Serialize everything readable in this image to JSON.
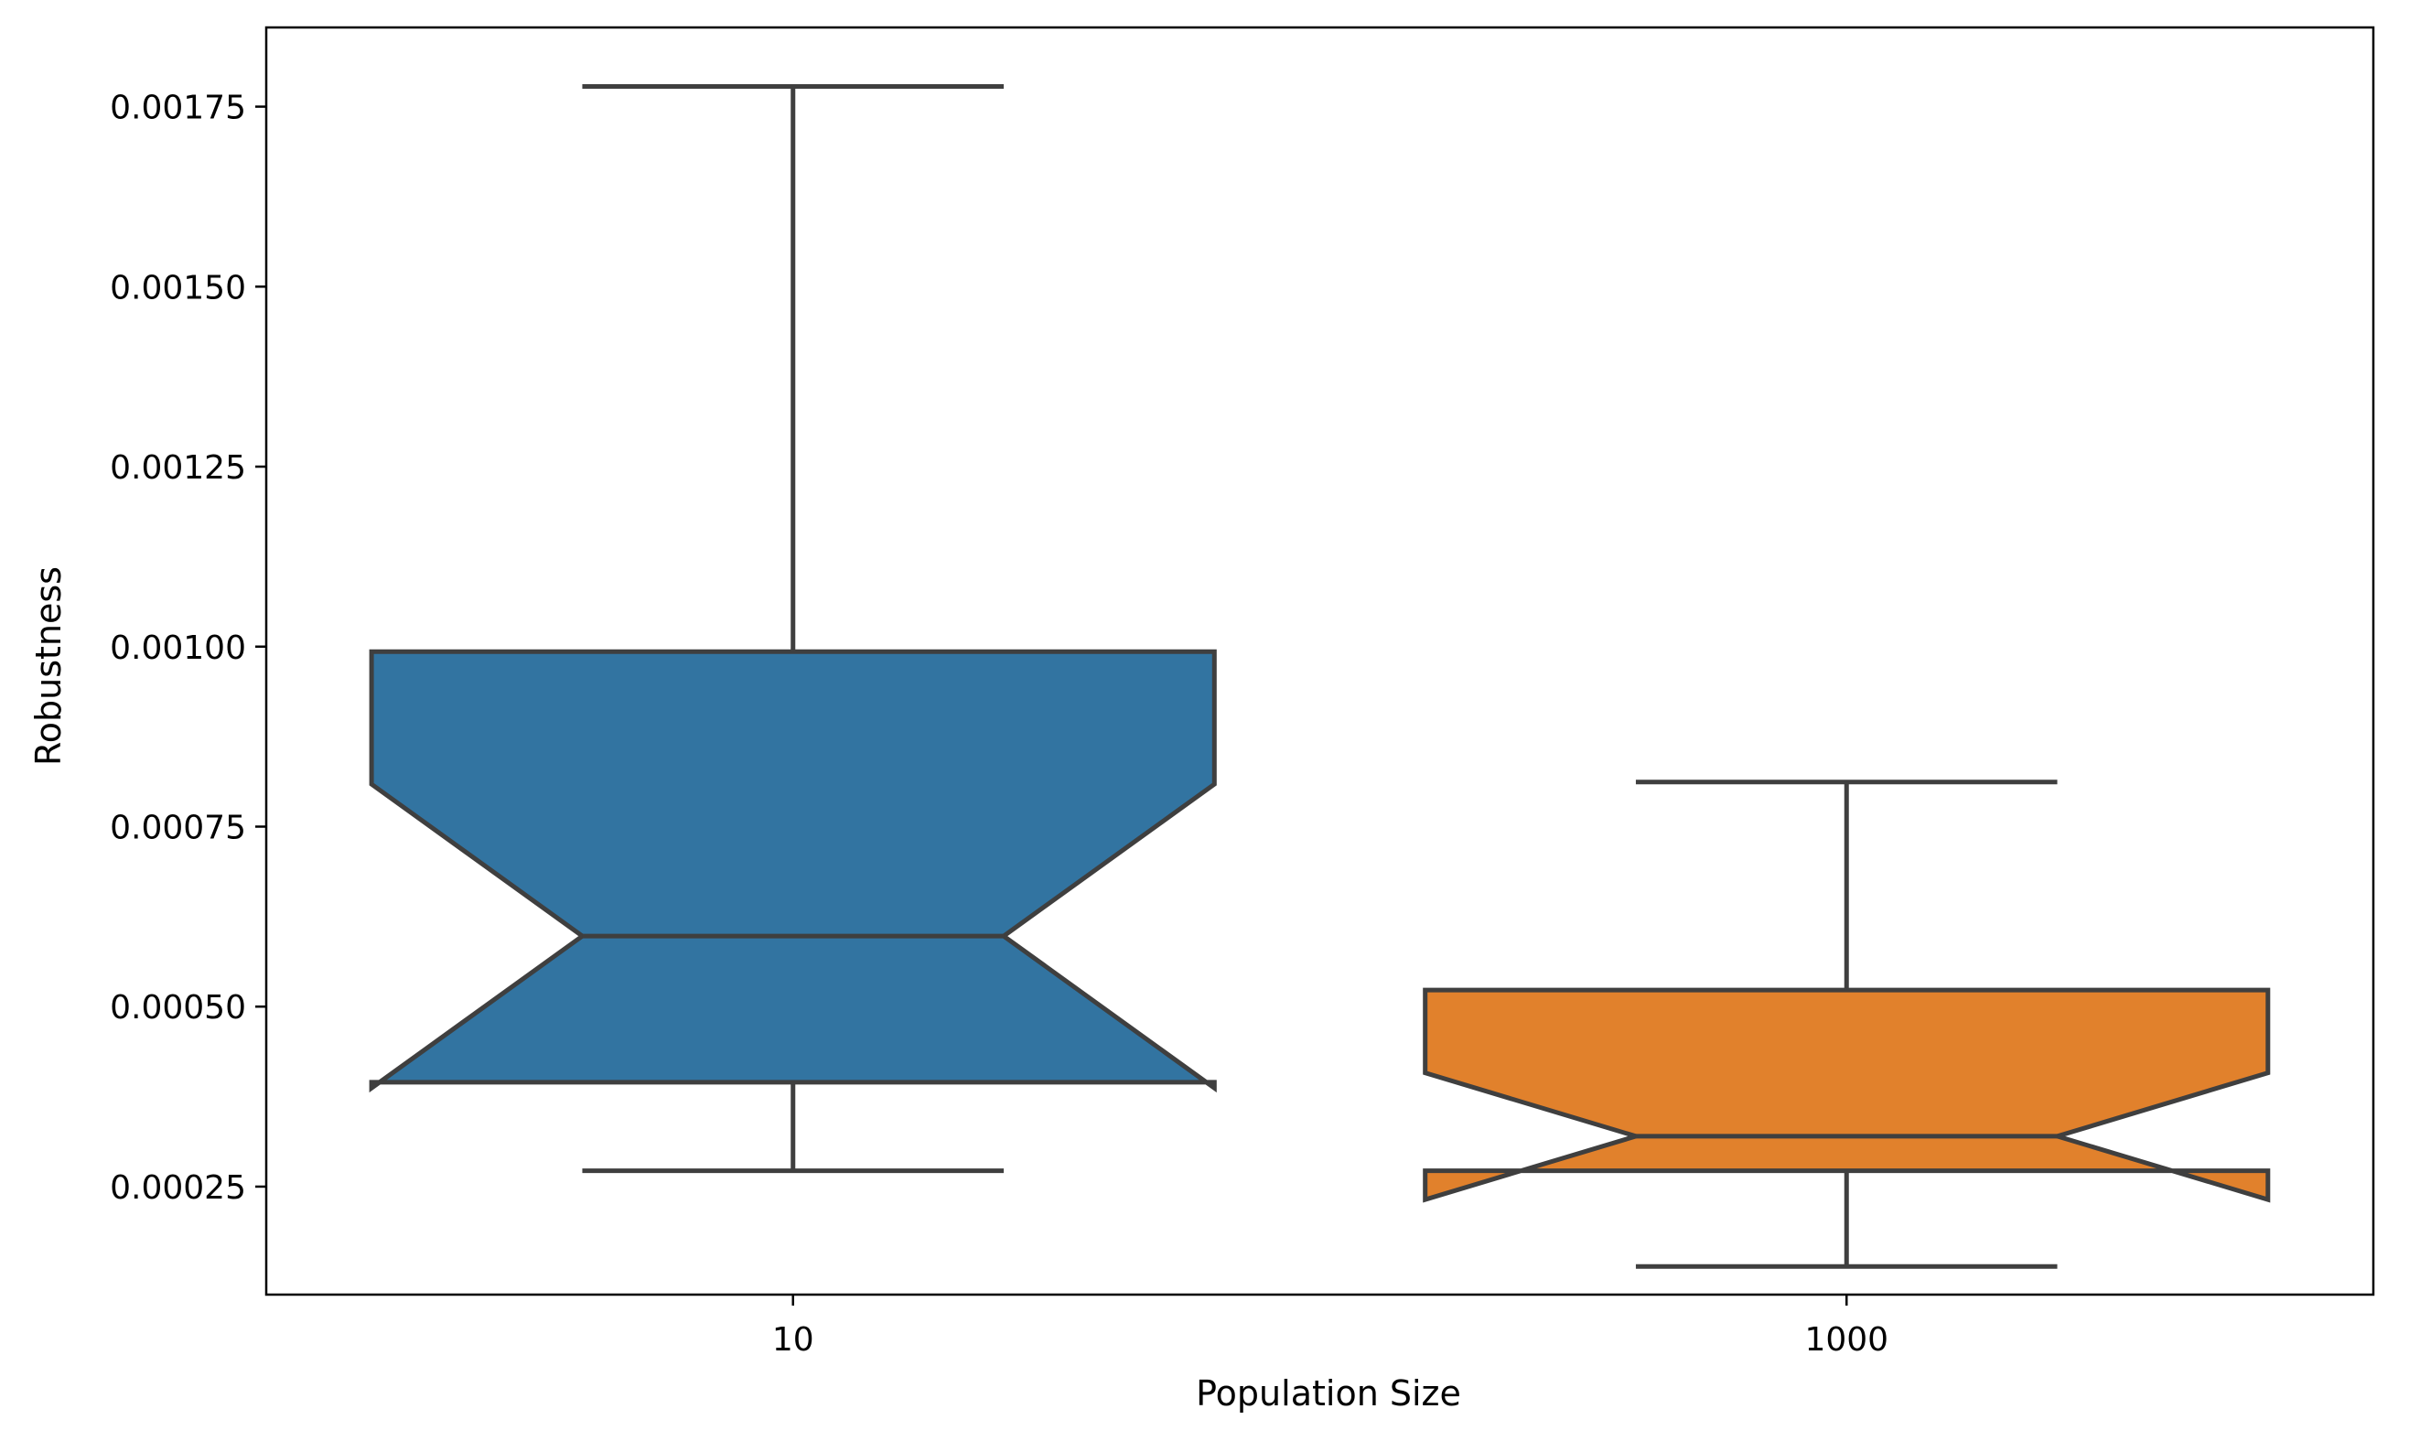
{
  "chart_data": {
    "type": "box",
    "notched": true,
    "xlabel": "Population Size",
    "ylabel": "Robustness",
    "categories": [
      "10",
      "1000"
    ],
    "ylim": [
      0.0001,
      0.00186
    ],
    "yticks": [
      0.00025,
      0.0005,
      0.00075,
      0.001,
      0.00125,
      0.0015,
      0.00175
    ],
    "ytick_labels": [
      "0.00025",
      "0.00050",
      "0.00075",
      "0.00100",
      "0.00125",
      "0.00150",
      "0.00175"
    ],
    "grid": false,
    "legend": "none",
    "boxes": [
      {
        "category": "10",
        "color": "#3274a1",
        "whisker_low": 0.000272,
        "q1": 0.000395,
        "notch_low": 0.000387,
        "median": 0.000598,
        "notch_high": 0.000809,
        "q3": 0.000993,
        "whisker_high": 0.001778
      },
      {
        "category": "1000",
        "color": "#e1812c",
        "whisker_low": 0.000139,
        "q1": 0.000272,
        "notch_low": 0.000232,
        "median": 0.00032,
        "notch_high": 0.000408,
        "q3": 0.000523,
        "whisker_high": 0.000812
      }
    ]
  }
}
